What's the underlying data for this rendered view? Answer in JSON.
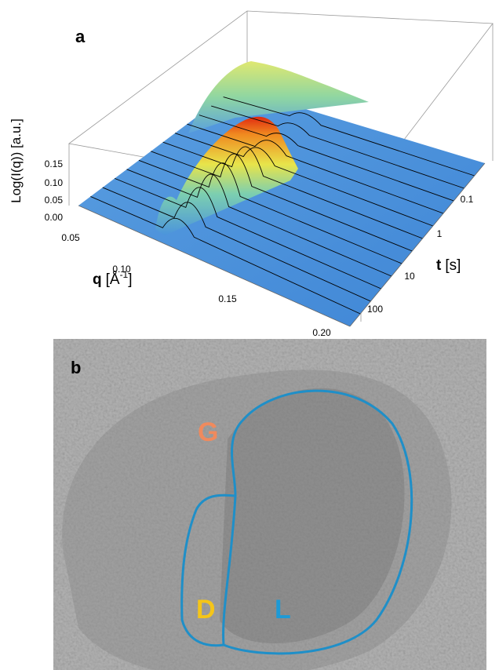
{
  "panels": [
    {
      "label": "a",
      "y_axis": {
        "label": "Log(I(q)) [a.u.]",
        "ticks": [
          0.15,
          {
            "value": 0.1,
            "label": "0.10"
          },
          0.05,
          {
            "value": 0,
            "label": "0.00"
          }
        ]
      },
      "q_axis": {
        "symbol": "q",
        "unit_open": "[Å",
        "exponent": "-1",
        "unit_close": "]",
        "ticks": [
          0.05,
          {
            "value": 0.1,
            "label": "0.10"
          },
          0.15,
          {
            "value": 0.2,
            "label": "0.20"
          }
        ]
      },
      "t_axis": {
        "symbol": "t",
        "unit": "[s]",
        "ticks": [
          0.1,
          1,
          10,
          100
        ]
      }
    },
    {
      "label": "b",
      "regions": [
        "G",
        "D",
        "L"
      ]
    }
  ]
}
